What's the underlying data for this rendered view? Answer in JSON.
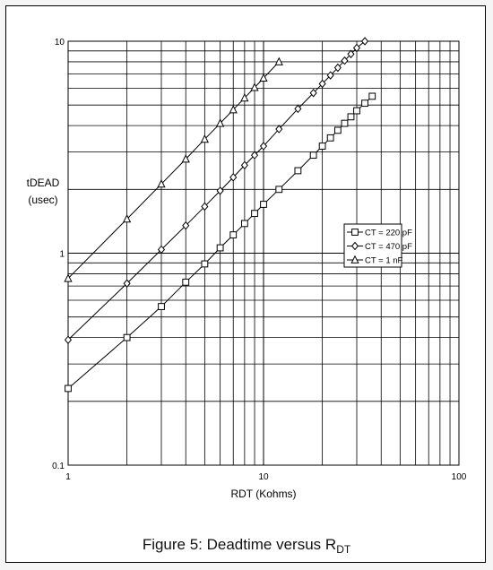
{
  "chart_data": {
    "type": "line",
    "title": "Figure 5: Deadtime versus R",
    "title_sub": "DT",
    "xlabel": "RDT (Kohms)",
    "ylabel_lines": [
      "tDEAD",
      "(usec)"
    ],
    "xscale": "log",
    "yscale": "log",
    "xlim": [
      1,
      100
    ],
    "ylim": [
      0.1,
      10
    ],
    "x_ticks": [
      "1",
      "10",
      "100"
    ],
    "y_ticks": [
      "0.1",
      "1",
      "10"
    ],
    "grid": true,
    "legend_position": "right-middle",
    "series": [
      {
        "name": "CT = 220 pF",
        "marker": "square",
        "x": [
          1,
          2,
          3,
          4,
          5,
          6,
          7,
          8,
          9,
          10,
          12,
          15,
          18,
          20,
          22,
          24,
          26,
          28,
          30,
          33,
          36
        ],
        "y": [
          0.23,
          0.4,
          0.56,
          0.73,
          0.89,
          1.06,
          1.22,
          1.38,
          1.54,
          1.7,
          2.0,
          2.45,
          2.9,
          3.2,
          3.5,
          3.8,
          4.1,
          4.4,
          4.7,
          5.1,
          5.5
        ]
      },
      {
        "name": "CT = 470 pF",
        "marker": "diamond",
        "x": [
          1,
          2,
          3,
          4,
          5,
          6,
          7,
          8,
          9,
          10,
          12,
          15,
          18,
          20,
          22,
          24,
          26,
          28,
          30,
          33
        ],
        "y": [
          0.39,
          0.72,
          1.04,
          1.35,
          1.66,
          1.97,
          2.28,
          2.6,
          2.9,
          3.2,
          3.85,
          4.8,
          5.7,
          6.3,
          6.9,
          7.5,
          8.1,
          8.7,
          9.3,
          10.0
        ]
      },
      {
        "name": "CT = 1 nF",
        "marker": "triangle",
        "x": [
          1,
          2,
          3,
          4,
          5,
          6,
          7,
          8,
          9,
          10,
          12
        ],
        "y": [
          0.76,
          1.45,
          2.12,
          2.78,
          3.45,
          4.1,
          4.75,
          5.4,
          6.05,
          6.7,
          8.0
        ]
      }
    ]
  }
}
